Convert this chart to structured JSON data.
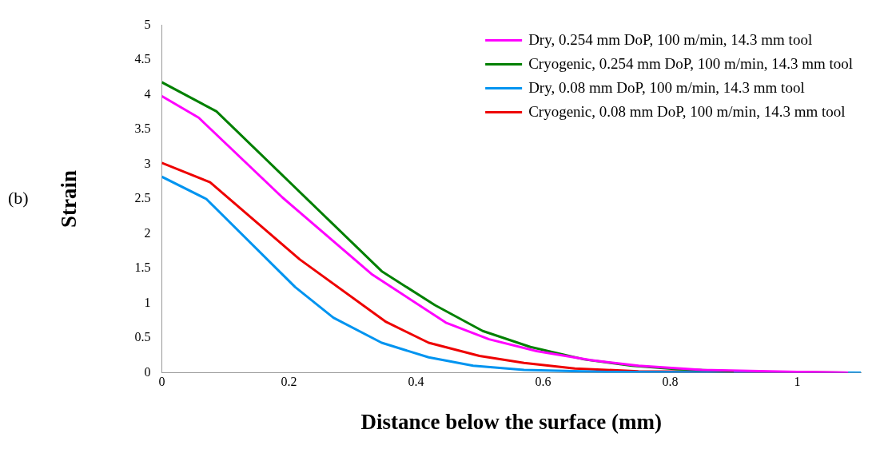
{
  "chart_data": {
    "type": "line",
    "xlabel": "Distance below the surface (mm)",
    "ylabel": "Strain",
    "annotations": [
      "(b)"
    ],
    "xlim": [
      0,
      1.1
    ],
    "xticks": [
      0,
      0.2,
      0.4,
      0.6,
      0.8,
      1
    ],
    "ylim": [
      0,
      5
    ],
    "yticks": [
      0,
      0.5,
      1,
      1.5,
      2,
      2.5,
      3,
      3.5,
      4,
      4.5,
      5
    ],
    "grid": false,
    "legend": "top right",
    "marker": "none",
    "line_style": "solid",
    "series": [
      {
        "name": "Dry, 0.254 mm DoP, 100 m/min, 14.3 mm tool",
        "color": "#ff00ff",
        "x": [
          0,
          0.058,
          0.19,
          0.33,
          0.447,
          0.515,
          0.59,
          0.675,
          0.75,
          0.85,
          1.0,
          1.08
        ],
        "values": [
          3.98,
          3.67,
          2.52,
          1.42,
          0.72,
          0.48,
          0.31,
          0.18,
          0.1,
          0.04,
          0.01,
          0
        ]
      },
      {
        "name": "Cryogenic, 0.254 mm DoP, 100 m/min, 14.3 mm tool",
        "color": "#008000",
        "x": [
          0,
          0.086,
          0.346,
          0.43,
          0.505,
          0.58,
          0.665,
          0.74,
          0.81,
          0.9
        ],
        "values": [
          4.18,
          3.76,
          1.46,
          0.97,
          0.6,
          0.37,
          0.19,
          0.1,
          0.05,
          0.02
        ]
      },
      {
        "name": "Dry, 0.08 mm DoP, 100 m/min, 14.3 mm tool",
        "color": "#0094f0",
        "x": [
          0,
          0.07,
          0.21,
          0.27,
          0.346,
          0.42,
          0.49,
          0.57,
          0.7,
          1.1
        ],
        "values": [
          2.82,
          2.5,
          1.23,
          0.79,
          0.43,
          0.22,
          0.1,
          0.04,
          0.01,
          0
        ]
      },
      {
        "name": "Cryogenic, 0.08 mm DoP, 100 m/min, 14.3 mm tool",
        "color": "#ee0000",
        "x": [
          0,
          0.076,
          0.217,
          0.353,
          0.42,
          0.5,
          0.57,
          0.65,
          0.75,
          1.08
        ],
        "values": [
          3.02,
          2.74,
          1.63,
          0.73,
          0.43,
          0.24,
          0.14,
          0.06,
          0.02,
          0
        ]
      }
    ]
  }
}
